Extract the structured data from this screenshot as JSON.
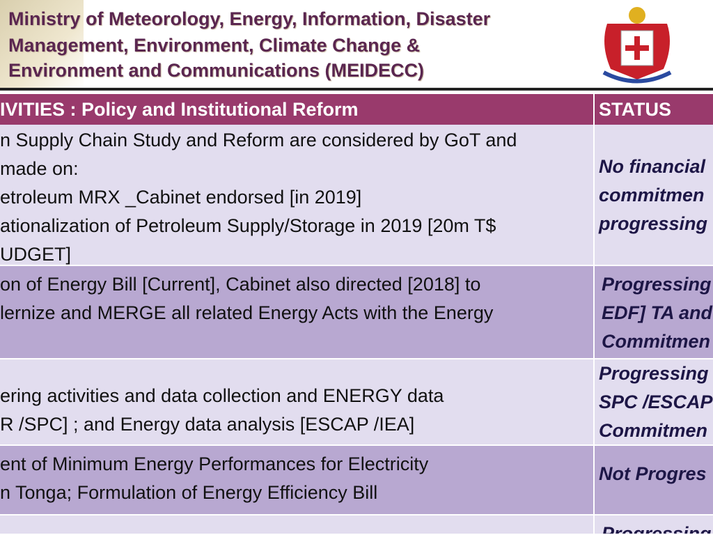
{
  "header": {
    "title": [
      "Ministry of Meteorology, Energy, Information, Disaster",
      "Management, Environment, Climate Change &",
      "Environment and Communications (MEIDECC)"
    ]
  },
  "table": {
    "columns": [
      "IVITIES : Policy and Institutional Reform",
      "STATUS"
    ],
    "rows": [
      {
        "activity": [
          "n Supply Chain Study and Reform are considered by GoT and",
          "made on:",
          "etroleum MRX _Cabinet endorsed [in 2019]",
          "ationalization of Petroleum Supply/Storage in 2019 [20m T$",
          "UDGET]"
        ],
        "status": [
          "No financial",
          "commitmen",
          "progressing"
        ]
      },
      {
        "activity": [
          "on  of Energy Bill [Current], Cabinet also directed [2018] to",
          "lernize and MERGE all related Energy Acts with the Energy"
        ],
        "status": [
          "Progressing",
          "EDF] TA and",
          "Commitmen"
        ]
      },
      {
        "activity": [
          "ering activities and data collection and ENERGY data",
          "R /SPC] ; and Energy data analysis [ESCAP /IEA]"
        ],
        "status": [
          "Progressing",
          "SPC /ESCAP",
          "Commitmen"
        ]
      },
      {
        "activity": [
          "ent of Minimum Energy Performances for Electricity",
          "n Tonga; Formulation of Energy Efficiency Bill"
        ],
        "status": [
          "Not Progres"
        ]
      },
      {
        "activity": [],
        "status": [
          "Progressing"
        ]
      }
    ]
  }
}
